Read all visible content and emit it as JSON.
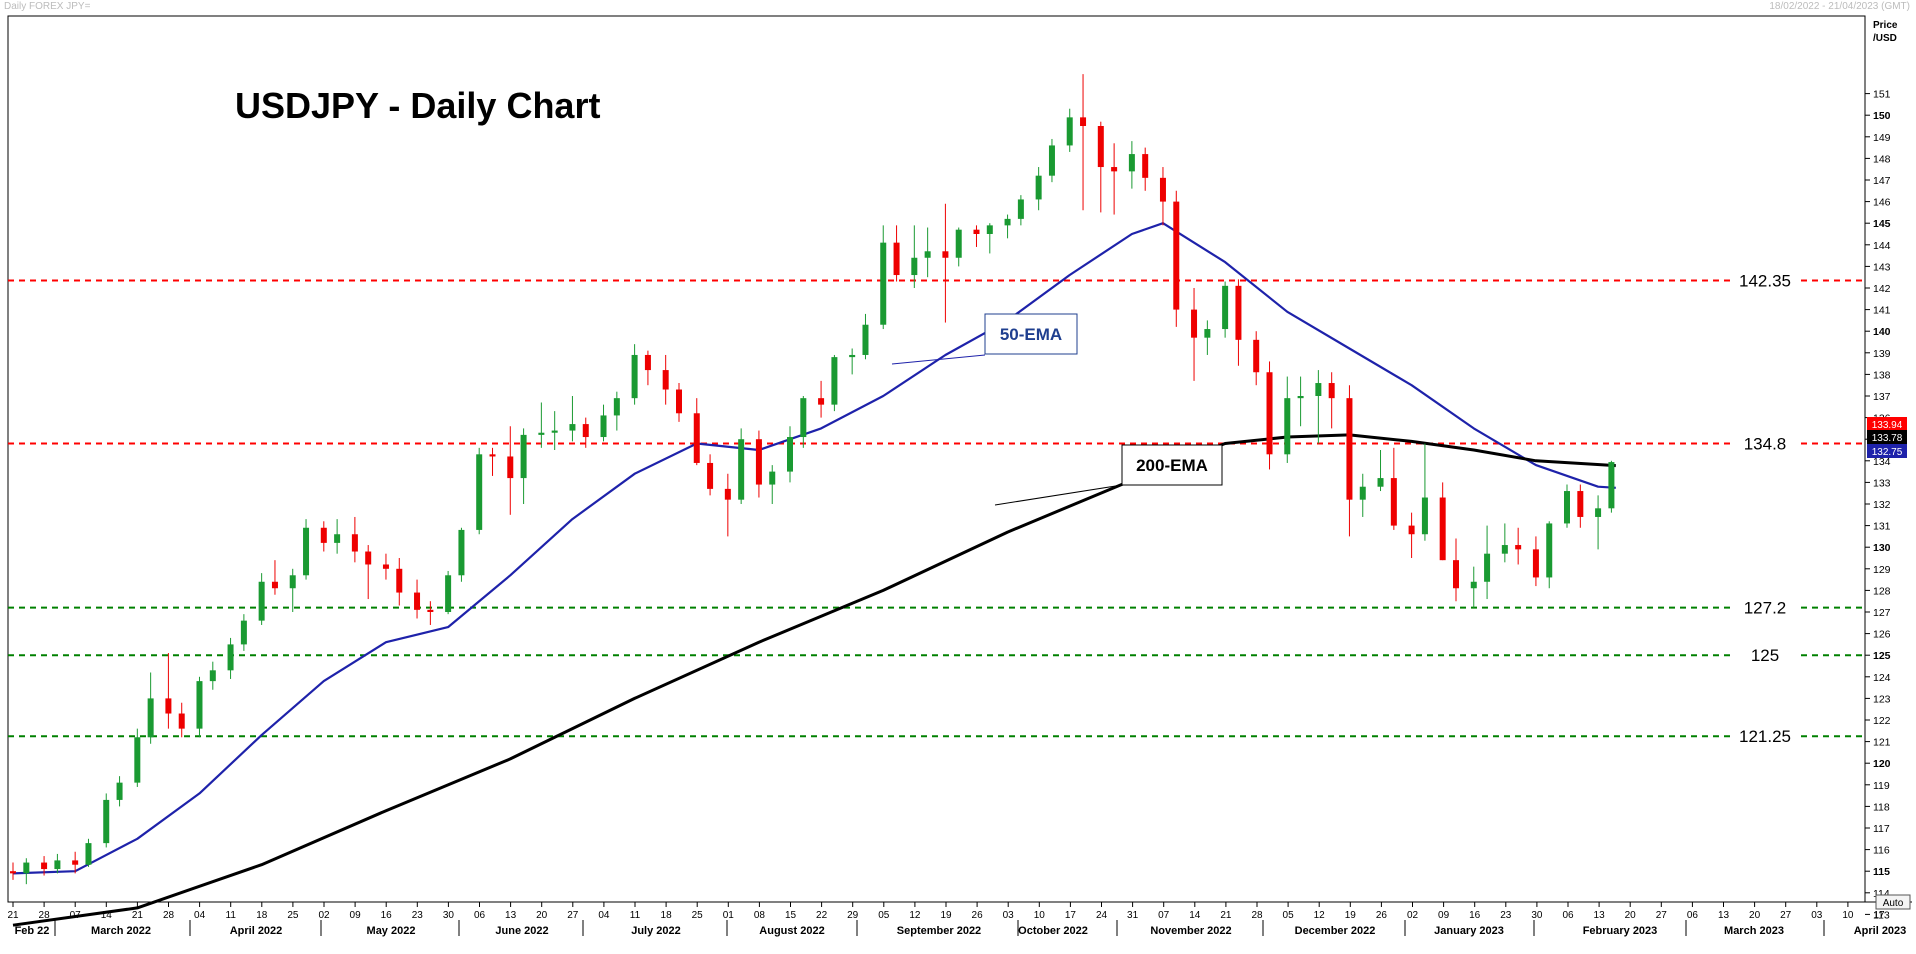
{
  "window": {
    "instrument_label": "Daily FOREX JPY=",
    "date_range": "18/02/2022 - 21/04/2023 (GMT)",
    "auto_button": "Auto"
  },
  "chart_data": {
    "type": "candlestick",
    "title": "USDJPY - Daily Chart",
    "y_axis": {
      "label_line1": "Price",
      "label_line2": "/USD",
      "min": 112,
      "max": 152,
      "tick_step": 1,
      "bold_ticks": [
        115,
        120,
        125,
        130,
        135,
        140,
        145,
        150
      ]
    },
    "x_axis": {
      "day_ticks": [
        "21",
        "28",
        "07",
        "14",
        "21",
        "28",
        "04",
        "11",
        "18",
        "25",
        "02",
        "09",
        "16",
        "23",
        "30",
        "06",
        "13",
        "20",
        "27",
        "04",
        "11",
        "18",
        "25",
        "01",
        "08",
        "15",
        "22",
        "29",
        "05",
        "12",
        "19",
        "26",
        "03",
        "10",
        "17",
        "24",
        "31",
        "07",
        "14",
        "21",
        "28",
        "05",
        "12",
        "19",
        "26",
        "02",
        "09",
        "16",
        "23",
        "30",
        "06",
        "13",
        "20",
        "27",
        "06",
        "13",
        "20",
        "27",
        "03",
        "10",
        "17"
      ],
      "month_labels": [
        "Feb 22",
        "March 2022",
        "April 2022",
        "May 2022",
        "June 2022",
        "July 2022",
        "August 2022",
        "September 2022",
        "October 2022",
        "November 2022",
        "December 2022",
        "January 2023",
        "February 2023",
        "March 2023",
        "April 2023"
      ]
    },
    "horizontal_levels": [
      {
        "value": 142.35,
        "label": "142.35",
        "color": "#ff0000"
      },
      {
        "value": 134.8,
        "label": "134.8",
        "color": "#ff0000"
      },
      {
        "value": 127.2,
        "label": "127.2",
        "color": "#008000"
      },
      {
        "value": 125,
        "label": "125",
        "color": "#008000"
      },
      {
        "value": 121.25,
        "label": "121.25",
        "color": "#008000"
      }
    ],
    "price_tags": [
      {
        "value": 133.94,
        "label": "133.94",
        "color": "#ff0000"
      },
      {
        "value": 133.78,
        "label": "133.78",
        "color": "#000000"
      },
      {
        "value": 132.75,
        "label": "132.75",
        "color": "#1e22aa"
      }
    ],
    "annotations": [
      {
        "text": "50-EMA",
        "color": "#1f3f8f"
      },
      {
        "text": "200-EMA",
        "color": "#000000"
      }
    ],
    "series": [
      {
        "name": "50-EMA",
        "color": "#1e22aa",
        "x": [
          "2022-02-21",
          "2022-03-07",
          "2022-03-21",
          "2022-04-04",
          "2022-04-18",
          "2022-05-02",
          "2022-05-16",
          "2022-05-30",
          "2022-06-13",
          "2022-06-27",
          "2022-07-11",
          "2022-07-25",
          "2022-08-08",
          "2022-08-22",
          "2022-09-05",
          "2022-09-19",
          "2022-10-03",
          "2022-10-17",
          "2022-10-31",
          "2022-11-07",
          "2022-11-21",
          "2022-12-05",
          "2022-12-19",
          "2023-01-02",
          "2023-01-16",
          "2023-01-30",
          "2023-02-13",
          "2023-02-17"
        ],
        "values": [
          114.9,
          115.0,
          116.5,
          118.6,
          121.3,
          123.8,
          125.6,
          126.3,
          128.7,
          131.3,
          133.4,
          134.8,
          134.5,
          135.5,
          137.0,
          138.9,
          140.5,
          142.6,
          144.5,
          145.0,
          143.2,
          140.9,
          139.2,
          137.5,
          135.5,
          133.8,
          132.8,
          132.75
        ]
      },
      {
        "name": "200-EMA",
        "color": "#000000",
        "x": [
          "2022-02-21",
          "2022-03-21",
          "2022-04-18",
          "2022-05-16",
          "2022-06-13",
          "2022-07-11",
          "2022-08-08",
          "2022-09-05",
          "2022-10-03",
          "2022-10-31",
          "2022-11-21",
          "2022-12-05",
          "2022-12-19",
          "2023-01-02",
          "2023-01-16",
          "2023-01-30",
          "2023-02-17"
        ],
        "values": [
          112.5,
          113.3,
          115.3,
          117.8,
          120.2,
          123.0,
          125.6,
          128.0,
          130.7,
          133.1,
          134.8,
          135.1,
          135.2,
          134.9,
          134.5,
          134.0,
          133.78
        ]
      }
    ],
    "candles": [
      [
        "2022-02-21",
        115.0,
        115.4,
        114.6,
        114.9
      ],
      [
        "2022-02-24",
        114.9,
        115.6,
        114.4,
        115.4
      ],
      [
        "2022-02-28",
        115.4,
        115.7,
        114.8,
        115.1
      ],
      [
        "2022-03-03",
        115.1,
        115.8,
        114.9,
        115.5
      ],
      [
        "2022-03-07",
        115.5,
        115.9,
        114.9,
        115.3
      ],
      [
        "2022-03-10",
        115.3,
        116.5,
        115.2,
        116.3
      ],
      [
        "2022-03-14",
        116.3,
        118.6,
        116.1,
        118.3
      ],
      [
        "2022-03-17",
        118.3,
        119.4,
        118.0,
        119.1
      ],
      [
        "2022-03-21",
        119.1,
        121.6,
        118.9,
        121.2
      ],
      [
        "2022-03-24",
        121.2,
        124.2,
        120.9,
        123.0
      ],
      [
        "2022-03-28",
        123.0,
        125.1,
        121.6,
        122.3
      ],
      [
        "2022-03-31",
        122.3,
        122.8,
        121.2,
        121.6
      ],
      [
        "2022-04-04",
        121.6,
        124.0,
        121.2,
        123.8
      ],
      [
        "2022-04-07",
        123.8,
        124.7,
        123.4,
        124.3
      ],
      [
        "2022-04-11",
        124.3,
        125.8,
        123.9,
        125.5
      ],
      [
        "2022-04-14",
        125.5,
        126.9,
        125.2,
        126.6
      ],
      [
        "2022-04-18",
        126.6,
        128.8,
        126.4,
        128.4
      ],
      [
        "2022-04-21",
        128.4,
        129.4,
        127.8,
        128.1
      ],
      [
        "2022-04-25",
        128.1,
        129.0,
        127.0,
        128.7
      ],
      [
        "2022-04-28",
        128.7,
        131.3,
        128.5,
        130.9
      ],
      [
        "2022-05-02",
        130.9,
        131.2,
        129.8,
        130.2
      ],
      [
        "2022-05-05",
        130.2,
        131.3,
        129.7,
        130.6
      ],
      [
        "2022-05-09",
        130.6,
        131.4,
        129.3,
        129.8
      ],
      [
        "2022-05-12",
        129.8,
        130.1,
        127.6,
        129.2
      ],
      [
        "2022-05-16",
        129.2,
        129.7,
        128.5,
        129.0
      ],
      [
        "2022-05-19",
        129.0,
        129.5,
        127.3,
        127.9
      ],
      [
        "2022-05-23",
        127.9,
        128.5,
        126.7,
        127.1
      ],
      [
        "2022-05-26",
        127.1,
        127.5,
        126.4,
        127.0
      ],
      [
        "2022-05-30",
        127.0,
        128.9,
        126.9,
        128.7
      ],
      [
        "2022-06-02",
        128.7,
        130.9,
        128.4,
        130.8
      ],
      [
        "2022-06-06",
        130.8,
        134.6,
        130.6,
        134.3
      ],
      [
        "2022-06-09",
        134.3,
        134.6,
        133.3,
        134.2
      ],
      [
        "2022-06-13",
        134.2,
        135.6,
        131.5,
        133.2
      ],
      [
        "2022-06-16",
        133.2,
        135.5,
        132.0,
        135.2
      ],
      [
        "2022-06-20",
        135.2,
        136.7,
        134.6,
        135.3
      ],
      [
        "2022-06-23",
        135.3,
        136.3,
        134.5,
        135.4
      ],
      [
        "2022-06-27",
        135.4,
        137.0,
        134.9,
        135.7
      ],
      [
        "2022-06-30",
        135.7,
        136.0,
        134.6,
        135.1
      ],
      [
        "2022-07-04",
        135.1,
        136.6,
        134.9,
        136.1
      ],
      [
        "2022-07-07",
        136.1,
        137.2,
        135.4,
        136.9
      ],
      [
        "2022-07-11",
        136.9,
        139.4,
        136.6,
        138.9
      ],
      [
        "2022-07-14",
        138.9,
        139.1,
        137.5,
        138.2
      ],
      [
        "2022-07-18",
        138.2,
        138.9,
        136.6,
        137.3
      ],
      [
        "2022-07-21",
        137.3,
        137.6,
        135.8,
        136.2
      ],
      [
        "2022-07-25",
        136.2,
        136.9,
        133.8,
        133.9
      ],
      [
        "2022-07-28",
        133.9,
        134.3,
        132.4,
        132.7
      ],
      [
        "2022-08-01",
        132.7,
        133.4,
        130.5,
        132.2
      ],
      [
        "2022-08-04",
        132.2,
        135.5,
        132.0,
        135.0
      ],
      [
        "2022-08-08",
        135.0,
        135.4,
        132.3,
        132.9
      ],
      [
        "2022-08-11",
        132.9,
        133.8,
        132.0,
        133.5
      ],
      [
        "2022-08-15",
        133.5,
        135.6,
        133.0,
        135.1
      ],
      [
        "2022-08-18",
        135.1,
        137.0,
        134.6,
        136.9
      ],
      [
        "2022-08-22",
        136.9,
        137.7,
        136.0,
        136.6
      ],
      [
        "2022-08-25",
        136.6,
        138.9,
        136.3,
        138.8
      ],
      [
        "2022-08-29",
        138.8,
        139.2,
        138.0,
        138.9
      ],
      [
        "2022-09-01",
        138.9,
        140.8,
        138.7,
        140.3
      ],
      [
        "2022-09-05",
        140.3,
        144.9,
        140.1,
        144.1
      ],
      [
        "2022-09-08",
        144.1,
        144.9,
        142.3,
        142.6
      ],
      [
        "2022-09-12",
        142.6,
        144.9,
        142.0,
        143.4
      ],
      [
        "2022-09-15",
        143.4,
        144.8,
        142.5,
        143.7
      ],
      [
        "2022-09-19",
        143.7,
        145.9,
        140.4,
        143.4
      ],
      [
        "2022-09-22",
        143.4,
        144.8,
        143.0,
        144.7
      ],
      [
        "2022-09-26",
        144.7,
        144.9,
        143.9,
        144.5
      ],
      [
        "2022-09-29",
        144.5,
        145.0,
        143.6,
        144.9
      ],
      [
        "2022-10-03",
        144.9,
        145.4,
        144.3,
        145.2
      ],
      [
        "2022-10-06",
        145.2,
        146.3,
        144.9,
        146.1
      ],
      [
        "2022-10-10",
        146.1,
        147.6,
        145.6,
        147.2
      ],
      [
        "2022-10-13",
        147.2,
        148.9,
        146.9,
        148.6
      ],
      [
        "2022-10-17",
        148.6,
        150.3,
        148.3,
        149.9
      ],
      [
        "2022-10-20",
        149.9,
        151.9,
        145.6,
        149.5
      ],
      [
        "2022-10-24",
        149.5,
        149.7,
        145.5,
        147.6
      ],
      [
        "2022-10-27",
        147.6,
        148.7,
        145.4,
        147.4
      ],
      [
        "2022-10-31",
        147.4,
        148.8,
        146.6,
        148.2
      ],
      [
        "2022-11-03",
        148.2,
        148.5,
        146.5,
        147.1
      ],
      [
        "2022-11-07",
        147.1,
        147.6,
        144.9,
        146.0
      ],
      [
        "2022-11-10",
        146.0,
        146.5,
        140.2,
        141.0
      ],
      [
        "2022-11-14",
        141.0,
        142.0,
        137.7,
        139.7
      ],
      [
        "2022-11-17",
        139.7,
        140.5,
        138.9,
        140.1
      ],
      [
        "2022-11-21",
        140.1,
        142.3,
        139.7,
        142.1
      ],
      [
        "2022-11-24",
        142.1,
        142.4,
        138.4,
        139.6
      ],
      [
        "2022-11-28",
        139.6,
        140.0,
        137.5,
        138.1
      ],
      [
        "2022-12-01",
        138.1,
        138.6,
        133.6,
        134.3
      ],
      [
        "2022-12-05",
        134.3,
        137.9,
        133.9,
        136.9
      ],
      [
        "2022-12-08",
        136.9,
        137.9,
        135.6,
        137.0
      ],
      [
        "2022-12-12",
        137.0,
        138.2,
        134.8,
        137.6
      ],
      [
        "2022-12-15",
        137.6,
        138.1,
        135.5,
        136.9
      ],
      [
        "2022-12-19",
        136.9,
        137.5,
        130.5,
        132.2
      ],
      [
        "2022-12-22",
        132.2,
        133.4,
        131.4,
        132.8
      ],
      [
        "2022-12-26",
        132.8,
        134.5,
        132.6,
        133.2
      ],
      [
        "2022-12-29",
        133.2,
        134.6,
        130.8,
        131.0
      ],
      [
        "2023-01-02",
        131.0,
        131.6,
        129.5,
        130.6
      ],
      [
        "2023-01-05",
        130.6,
        134.8,
        130.3,
        132.3
      ],
      [
        "2023-01-09",
        132.3,
        133.0,
        129.4,
        129.4
      ],
      [
        "2023-01-12",
        129.4,
        130.4,
        127.5,
        128.1
      ],
      [
        "2023-01-16",
        128.1,
        129.1,
        127.2,
        128.4
      ],
      [
        "2023-01-19",
        128.4,
        131.0,
        127.6,
        129.7
      ],
      [
        "2023-01-23",
        129.7,
        131.1,
        129.3,
        130.1
      ],
      [
        "2023-01-26",
        130.1,
        130.9,
        129.2,
        129.9
      ],
      [
        "2023-01-30",
        129.9,
        130.5,
        128.2,
        128.6
      ],
      [
        "2023-02-02",
        128.6,
        131.2,
        128.1,
        131.1
      ],
      [
        "2023-02-06",
        131.1,
        132.9,
        130.9,
        132.6
      ],
      [
        "2023-02-09",
        132.6,
        132.9,
        130.9,
        131.4
      ],
      [
        "2023-02-13",
        131.4,
        132.4,
        129.9,
        131.8
      ],
      [
        "2023-02-16",
        131.8,
        134.0,
        131.6,
        133.94
      ]
    ]
  }
}
